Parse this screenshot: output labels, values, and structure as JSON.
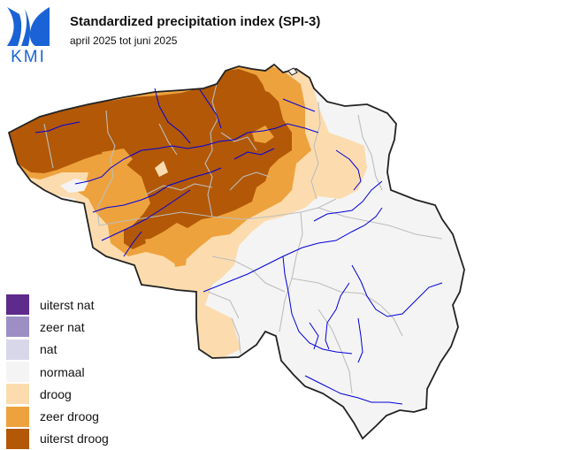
{
  "header": {
    "logo_text": "KMI",
    "title": "Standardized precipitation index (SPI-3)",
    "subtitle": "april 2025 tot juni 2025"
  },
  "legend": {
    "items": [
      {
        "label": "uiterst nat",
        "color": "#5e2a8c"
      },
      {
        "label": "zeer nat",
        "color": "#9d8ec4"
      },
      {
        "label": "nat",
        "color": "#d8d7ea"
      },
      {
        "label": "normaal",
        "color": "#f4f4f4"
      },
      {
        "label": "droog",
        "color": "#fcdcae"
      },
      {
        "label": "zeer droog",
        "color": "#eea23d"
      },
      {
        "label": "uiterst droog",
        "color": "#b25806"
      }
    ]
  },
  "map": {
    "colors": {
      "border": "#222222",
      "province_lines": "#bdbdbd",
      "rivers": "#0000dd"
    }
  }
}
